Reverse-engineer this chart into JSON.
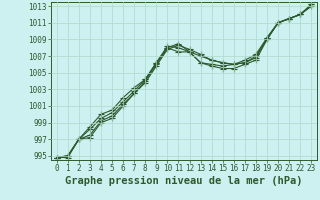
{
  "title": "Graphe pression niveau de la mer (hPa)",
  "bg_color": "#cdf0f0",
  "grid_color": "#b0d8cc",
  "line_color": "#2d5a2d",
  "xlim": [
    -0.5,
    23.5
  ],
  "ylim": [
    994.5,
    1013.5
  ],
  "yticks": [
    995,
    997,
    999,
    1001,
    1003,
    1005,
    1007,
    1009,
    1011,
    1013
  ],
  "xticks": [
    0,
    1,
    2,
    3,
    4,
    5,
    6,
    7,
    8,
    9,
    10,
    11,
    12,
    13,
    14,
    15,
    16,
    17,
    18,
    19,
    20,
    21,
    22,
    23
  ],
  "lines": [
    [
      994.8,
      994.8,
      997.0,
      997.2,
      999.0,
      999.5,
      1001.0,
      1002.5,
      1003.8,
      1005.8,
      1007.8,
      1008.3,
      1007.8,
      1007.2,
      1006.5,
      1006.2,
      1006.0,
      1006.2,
      1006.8,
      1009.2,
      1011.0,
      1011.5,
      1012.0,
      1013.2
    ],
    [
      994.8,
      995.0,
      997.0,
      998.2,
      999.5,
      1000.2,
      1001.5,
      1002.8,
      1004.2,
      1006.2,
      1008.0,
      1007.5,
      1007.5,
      1006.2,
      1005.8,
      1005.5,
      1005.5,
      1006.0,
      1006.5,
      1009.0,
      1011.0,
      1011.5,
      1012.0,
      1013.0
    ],
    [
      994.8,
      995.0,
      997.0,
      998.5,
      1000.0,
      1000.5,
      1002.0,
      1003.2,
      1004.2,
      1006.2,
      1008.2,
      1008.0,
      1007.5,
      1006.2,
      1006.0,
      1005.8,
      1006.0,
      1006.2,
      1007.0,
      1009.0,
      1011.0,
      1011.5,
      1012.0,
      1013.0
    ],
    [
      994.8,
      995.0,
      997.0,
      997.5,
      999.2,
      999.8,
      1001.2,
      1002.5,
      1004.0,
      1006.0,
      1008.0,
      1008.5,
      1007.5,
      1007.0,
      1006.5,
      1006.2,
      1006.0,
      1006.5,
      1007.2,
      1009.2,
      1011.0,
      1011.5,
      1012.0,
      1013.2
    ]
  ],
  "marker": "+",
  "markersize": 4.0,
  "linewidth": 0.8,
  "tick_fontsize": 5.5,
  "label_fontsize": 7.5
}
